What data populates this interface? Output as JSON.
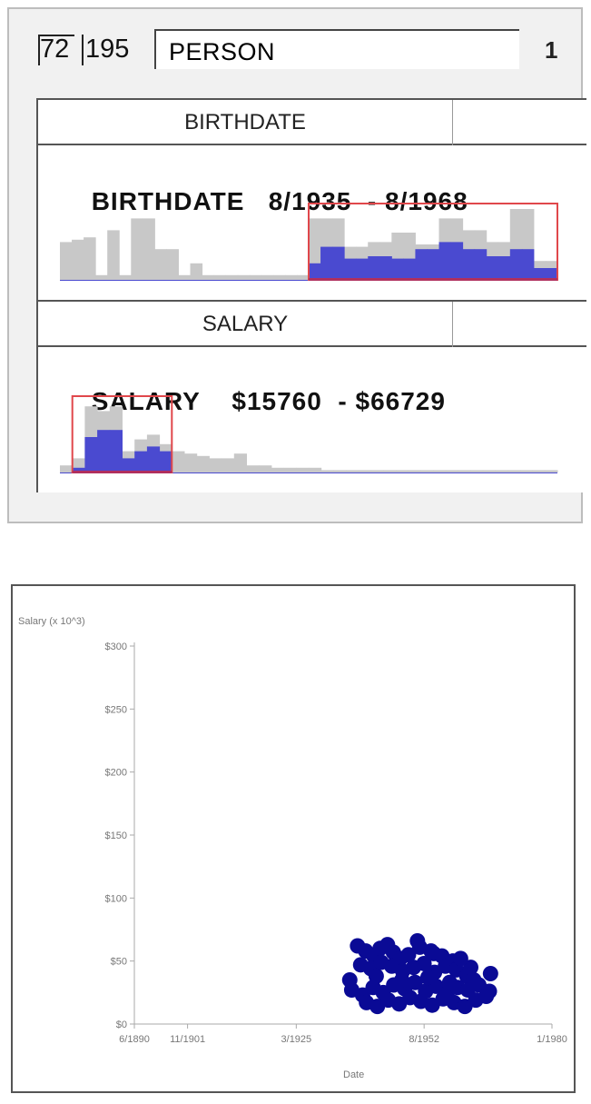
{
  "filter_panel": {
    "selected_count": "72",
    "total_count": "195",
    "table_name": "PERSON",
    "page_number": "1",
    "attributes": [
      {
        "header": "BIRTHDATE",
        "name": "BIRTHDATE",
        "range_min": "8/1935",
        "range_separator": "-",
        "range_max": "8/1968",
        "histogram": {
          "total": [
            16,
            17,
            18,
            2,
            21,
            2,
            26,
            26,
            13,
            13,
            2,
            7,
            2,
            2,
            2,
            2,
            2,
            2,
            2,
            2,
            2,
            26,
            26,
            26,
            14,
            14,
            16,
            16,
            20,
            20,
            15,
            15,
            26,
            26,
            21,
            21,
            16,
            16,
            30,
            30,
            8,
            8
          ],
          "selected": [
            0,
            0,
            0,
            0,
            0,
            0,
            0,
            0,
            0,
            0,
            0,
            0,
            0,
            0,
            0,
            0,
            0,
            0,
            0,
            0,
            0,
            7,
            14,
            14,
            9,
            9,
            10,
            10,
            9,
            9,
            13,
            13,
            16,
            16,
            13,
            13,
            10,
            10,
            13,
            13,
            5,
            5
          ],
          "selection_start": 21,
          "selection_end": 42
        },
        "colors": {
          "total": "#c8c8c8",
          "selected": "#4a4ad0",
          "brush": "#e0474b"
        }
      },
      {
        "header": "SALARY",
        "name": "SALARY",
        "range_min": "$15760",
        "range_separator": "-",
        "range_max": "$66729",
        "histogram": {
          "total": [
            3,
            6,
            28,
            26,
            28,
            9,
            14,
            16,
            12,
            9,
            8,
            7,
            6,
            6,
            8,
            3,
            3,
            2,
            2,
            2,
            2,
            1,
            1,
            1,
            1,
            1,
            1,
            1,
            1,
            1,
            1,
            1,
            1,
            1,
            1,
            1,
            1,
            1,
            1,
            1
          ],
          "selected": [
            0,
            2,
            15,
            18,
            18,
            6,
            9,
            11,
            9,
            0,
            0,
            0,
            0,
            0,
            0,
            0,
            0,
            0,
            0,
            0,
            0,
            0,
            0,
            0,
            0,
            0,
            0,
            0,
            0,
            0,
            0,
            0,
            0,
            0,
            0,
            0,
            0,
            0,
            0,
            0
          ],
          "selection_start": 1,
          "selection_end": 9
        },
        "colors": {
          "total": "#c8c8c8",
          "selected": "#4a4ad0",
          "brush": "#e0474b"
        }
      }
    ]
  },
  "chart_data": {
    "type": "scatter",
    "title": "",
    "xlabel": "Date",
    "ylabel": "Salary (x 10^3)",
    "x_ticks": [
      "6/1890",
      "11/1901",
      "3/1925",
      "8/1952",
      "1/1980"
    ],
    "y_ticks": [
      "$0",
      "$50",
      "$100",
      "$150",
      "$200",
      "$250",
      "$300"
    ],
    "ylim": [
      0,
      300
    ],
    "series": [
      {
        "color": "#0a0a95",
        "points": [
          [
            "1938-05",
            62
          ],
          [
            "1940-02",
            58
          ],
          [
            "1941-11",
            54
          ],
          [
            "1943-03",
            60
          ],
          [
            "1944-10",
            63
          ],
          [
            "1946-01",
            57
          ],
          [
            "1947-07",
            52
          ],
          [
            "1949-04",
            55
          ],
          [
            "1951-09",
            61
          ],
          [
            "1954-02",
            58
          ],
          [
            "1956-06",
            54
          ],
          [
            "1958-10",
            50
          ],
          [
            "1939-01",
            47
          ],
          [
            "1941-03",
            44
          ],
          [
            "1943-06",
            49
          ],
          [
            "1945-09",
            46
          ],
          [
            "1948-01",
            42
          ],
          [
            "1950-05",
            45
          ],
          [
            "1952-08",
            48
          ],
          [
            "1954-11",
            41
          ],
          [
            "1957-03",
            46
          ],
          [
            "1959-07",
            43
          ],
          [
            "1961-10",
            38
          ],
          [
            "1963-04",
            35
          ],
          [
            "1937-02",
            27
          ],
          [
            "1939-06",
            23
          ],
          [
            "1941-09",
            29
          ],
          [
            "1943-11",
            25
          ],
          [
            "1946-02",
            31
          ],
          [
            "1948-06",
            28
          ],
          [
            "1950-09",
            33
          ],
          [
            "1952-12",
            26
          ],
          [
            "1955-03",
            30
          ],
          [
            "1957-07",
            24
          ],
          [
            "1959-10",
            29
          ],
          [
            "1962-01",
            27
          ],
          [
            "1964-05",
            31
          ],
          [
            "1966-08",
            26
          ],
          [
            "1940-04",
            17
          ],
          [
            "1942-08",
            14
          ],
          [
            "1944-12",
            19
          ],
          [
            "1947-04",
            16
          ],
          [
            "1949-08",
            21
          ],
          [
            "1951-12",
            18
          ],
          [
            "1954-05",
            15
          ],
          [
            "1956-09",
            20
          ],
          [
            "1959-01",
            17
          ],
          [
            "1961-05",
            14
          ],
          [
            "1963-09",
            19
          ],
          [
            "1965-12",
            22
          ],
          [
            "1942-05",
            38
          ],
          [
            "1947-11",
            35
          ],
          [
            "1953-06",
            37
          ],
          [
            "1958-02",
            33
          ],
          [
            "1962-08",
            45
          ],
          [
            "1966-11",
            40
          ],
          [
            "1951-03",
            66
          ],
          [
            "1954-09",
            56
          ],
          [
            "1960-06",
            52
          ],
          [
            "1936-09",
            35
          ]
        ]
      }
    ],
    "grid": false,
    "legend": "none"
  }
}
